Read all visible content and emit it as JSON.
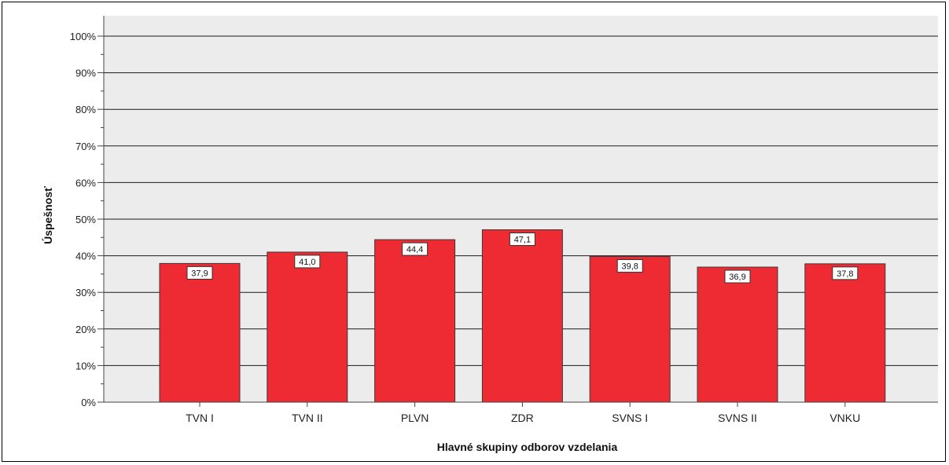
{
  "chart_data": {
    "type": "bar",
    "categories": [
      "TVN I",
      "TVN II",
      "PLVN",
      "ZDR",
      "SVNS I",
      "SVNS II",
      "VNKU"
    ],
    "values": [
      37.9,
      41.0,
      44.4,
      47.1,
      39.8,
      36.9,
      37.8
    ],
    "value_labels": [
      "37,9",
      "41,0",
      "44,4",
      "47,1",
      "39,8",
      "36,9",
      "37,8"
    ],
    "title": "",
    "xlabel": "Hlavné skupiny odborov vzdelania",
    "ylabel": "Úspešnosť",
    "ylim": [
      0,
      100
    ],
    "yticks": [
      "0%",
      "10%",
      "20%",
      "30%",
      "40%",
      "50%",
      "60%",
      "70%",
      "80%",
      "90%",
      "100%"
    ],
    "grid": true,
    "colors": {
      "bar": "#ee2a33",
      "plot_background": "#ececec",
      "grid": "#1a1a1a"
    }
  }
}
